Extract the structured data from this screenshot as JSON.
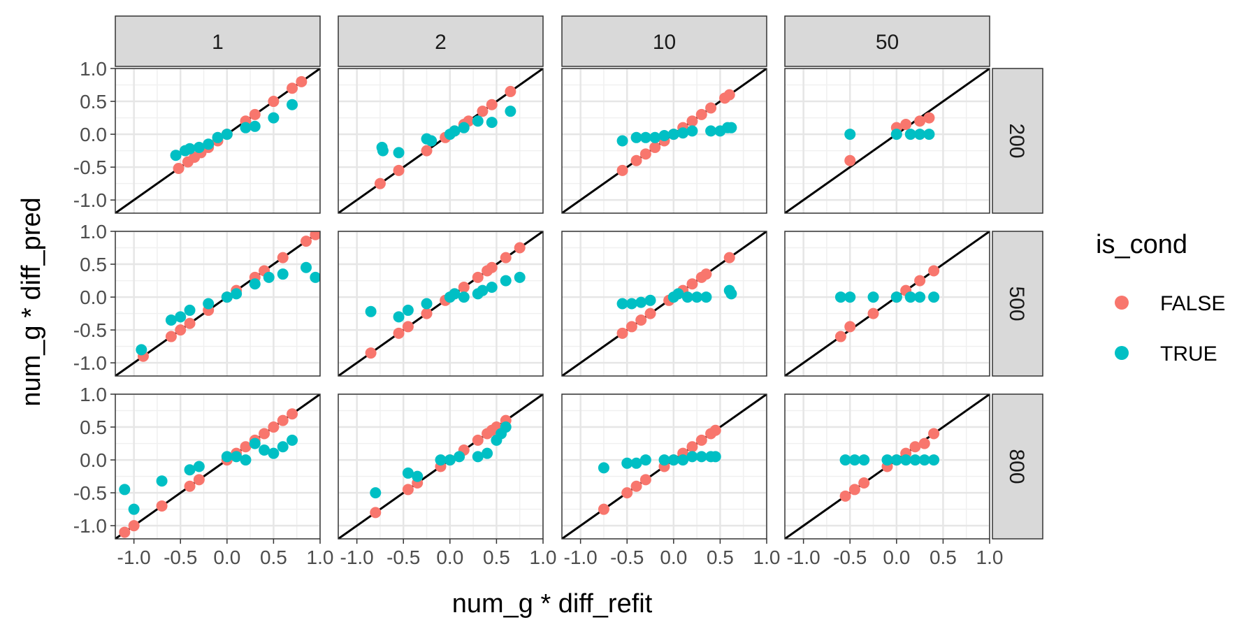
{
  "chart_data": {
    "type": "scatter",
    "title": "",
    "xlabel": "num_g * diff_refit",
    "ylabel": "num_g * diff_pred",
    "xlim": [
      -1.2,
      1.0
    ],
    "ylim": [
      -1.2,
      1.0
    ],
    "ticks": [
      -1.0,
      -0.5,
      0.0,
      0.5,
      1.0
    ],
    "tick_labels": [
      "-1.0",
      "-0.5",
      "0.0",
      "0.5",
      "1.0"
    ],
    "grid": true,
    "reference_line": "y = x",
    "col_labels": [
      "1",
      "2",
      "10",
      "50"
    ],
    "row_labels": [
      "200",
      "500",
      "800"
    ],
    "legend": {
      "title": "is_cond",
      "position": "right",
      "entries": [
        {
          "label": "FALSE",
          "color": "#F8766D"
        },
        {
          "label": "TRUE",
          "color": "#00BFC4"
        }
      ]
    },
    "panels": [
      {
        "row": "200",
        "col": "1",
        "false": [
          [
            -0.52,
            -0.52
          ],
          [
            -0.42,
            -0.42
          ],
          [
            -0.35,
            -0.35
          ],
          [
            -0.28,
            -0.28
          ],
          [
            -0.2,
            -0.2
          ],
          [
            -0.1,
            -0.1
          ],
          [
            0.0,
            0.0
          ],
          [
            0.2,
            0.2
          ],
          [
            0.3,
            0.3
          ],
          [
            0.5,
            0.5
          ],
          [
            0.7,
            0.7
          ],
          [
            0.8,
            0.8
          ]
        ],
        "true": [
          [
            -0.55,
            -0.32
          ],
          [
            -0.45,
            -0.25
          ],
          [
            -0.4,
            -0.22
          ],
          [
            -0.3,
            -0.2
          ],
          [
            -0.2,
            -0.15
          ],
          [
            -0.1,
            -0.05
          ],
          [
            0.0,
            0.0
          ],
          [
            0.2,
            0.1
          ],
          [
            0.3,
            0.12
          ],
          [
            0.5,
            0.25
          ],
          [
            0.7,
            0.45
          ]
        ]
      },
      {
        "row": "200",
        "col": "2",
        "false": [
          [
            -0.75,
            -0.75
          ],
          [
            -0.55,
            -0.55
          ],
          [
            -0.25,
            -0.25
          ],
          [
            -0.05,
            -0.05
          ],
          [
            0.05,
            0.05
          ],
          [
            0.15,
            0.15
          ],
          [
            0.2,
            0.2
          ],
          [
            0.35,
            0.35
          ],
          [
            0.45,
            0.45
          ],
          [
            0.65,
            0.65
          ]
        ],
        "true": [
          [
            -0.73,
            -0.2
          ],
          [
            -0.72,
            -0.25
          ],
          [
            -0.55,
            -0.28
          ],
          [
            -0.25,
            -0.07
          ],
          [
            -0.2,
            -0.1
          ],
          [
            0.0,
            0.0
          ],
          [
            0.05,
            0.05
          ],
          [
            0.15,
            0.1
          ],
          [
            0.3,
            0.2
          ],
          [
            0.45,
            0.18
          ],
          [
            0.65,
            0.35
          ]
        ]
      },
      {
        "row": "200",
        "col": "10",
        "false": [
          [
            -0.55,
            -0.55
          ],
          [
            -0.4,
            -0.4
          ],
          [
            -0.3,
            -0.3
          ],
          [
            -0.2,
            -0.2
          ],
          [
            -0.1,
            -0.1
          ],
          [
            0.0,
            0.0
          ],
          [
            0.1,
            0.1
          ],
          [
            0.2,
            0.2
          ],
          [
            0.3,
            0.3
          ],
          [
            0.4,
            0.4
          ],
          [
            0.55,
            0.55
          ],
          [
            0.6,
            0.6
          ]
        ],
        "true": [
          [
            -0.55,
            -0.1
          ],
          [
            -0.4,
            -0.05
          ],
          [
            -0.3,
            -0.05
          ],
          [
            -0.2,
            -0.05
          ],
          [
            -0.1,
            -0.02
          ],
          [
            0.0,
            0.0
          ],
          [
            0.1,
            0.02
          ],
          [
            0.2,
            0.05
          ],
          [
            0.4,
            0.05
          ],
          [
            0.5,
            0.05
          ],
          [
            0.58,
            0.1
          ],
          [
            0.62,
            0.1
          ]
        ]
      },
      {
        "row": "200",
        "col": "50",
        "false": [
          [
            -0.5,
            -0.4
          ],
          [
            0.0,
            0.1
          ],
          [
            0.1,
            0.15
          ],
          [
            0.25,
            0.2
          ],
          [
            0.35,
            0.25
          ]
        ],
        "true": [
          [
            -0.5,
            0.0
          ],
          [
            0.0,
            0.0
          ],
          [
            0.15,
            0.0
          ],
          [
            0.25,
            0.0
          ],
          [
            0.35,
            0.0
          ]
        ]
      },
      {
        "row": "500",
        "col": "1",
        "false": [
          [
            -0.9,
            -0.9
          ],
          [
            -0.6,
            -0.6
          ],
          [
            -0.5,
            -0.5
          ],
          [
            -0.4,
            -0.4
          ],
          [
            -0.2,
            -0.2
          ],
          [
            0.0,
            0.0
          ],
          [
            0.1,
            0.1
          ],
          [
            0.3,
            0.3
          ],
          [
            0.4,
            0.4
          ],
          [
            0.6,
            0.6
          ],
          [
            0.85,
            0.85
          ],
          [
            0.95,
            0.95
          ]
        ],
        "true": [
          [
            -0.92,
            -0.8
          ],
          [
            -0.6,
            -0.35
          ],
          [
            -0.5,
            -0.3
          ],
          [
            -0.4,
            -0.2
          ],
          [
            -0.2,
            -0.1
          ],
          [
            0.0,
            0.0
          ],
          [
            0.1,
            0.05
          ],
          [
            0.3,
            0.2
          ],
          [
            0.45,
            0.3
          ],
          [
            0.6,
            0.35
          ],
          [
            0.85,
            0.45
          ],
          [
            0.95,
            0.3
          ]
        ]
      },
      {
        "row": "500",
        "col": "2",
        "false": [
          [
            -0.85,
            -0.85
          ],
          [
            -0.55,
            -0.55
          ],
          [
            -0.45,
            -0.45
          ],
          [
            -0.25,
            -0.25
          ],
          [
            -0.05,
            -0.05
          ],
          [
            0.05,
            0.05
          ],
          [
            0.15,
            0.15
          ],
          [
            0.3,
            0.3
          ],
          [
            0.4,
            0.4
          ],
          [
            0.45,
            0.45
          ],
          [
            0.6,
            0.6
          ],
          [
            0.75,
            0.75
          ]
        ],
        "true": [
          [
            -0.85,
            -0.22
          ],
          [
            -0.55,
            -0.3
          ],
          [
            -0.45,
            -0.2
          ],
          [
            -0.25,
            -0.1
          ],
          [
            0.0,
            0.0
          ],
          [
            0.05,
            0.05
          ],
          [
            0.15,
            0.0
          ],
          [
            0.3,
            0.05
          ],
          [
            0.35,
            0.1
          ],
          [
            0.45,
            0.15
          ],
          [
            0.6,
            0.25
          ],
          [
            0.75,
            0.3
          ]
        ]
      },
      {
        "row": "500",
        "col": "10",
        "false": [
          [
            -0.55,
            -0.55
          ],
          [
            -0.45,
            -0.45
          ],
          [
            -0.35,
            -0.35
          ],
          [
            -0.25,
            -0.25
          ],
          [
            -0.05,
            -0.05
          ],
          [
            0.1,
            0.1
          ],
          [
            0.2,
            0.2
          ],
          [
            0.3,
            0.3
          ],
          [
            0.35,
            0.35
          ],
          [
            0.6,
            0.6
          ]
        ],
        "true": [
          [
            -0.55,
            -0.1
          ],
          [
            -0.45,
            -0.1
          ],
          [
            -0.35,
            -0.08
          ],
          [
            -0.25,
            -0.05
          ],
          [
            0.0,
            0.0
          ],
          [
            0.05,
            0.05
          ],
          [
            0.15,
            0.0
          ],
          [
            0.25,
            0.0
          ],
          [
            0.35,
            0.0
          ],
          [
            0.6,
            0.1
          ],
          [
            0.62,
            0.05
          ]
        ]
      },
      {
        "row": "500",
        "col": "50",
        "false": [
          [
            -0.6,
            -0.6
          ],
          [
            -0.5,
            -0.45
          ],
          [
            -0.25,
            -0.25
          ],
          [
            0.0,
            0.0
          ],
          [
            0.1,
            0.1
          ],
          [
            0.25,
            0.25
          ],
          [
            0.4,
            0.4
          ]
        ],
        "true": [
          [
            -0.6,
            0.0
          ],
          [
            -0.5,
            0.0
          ],
          [
            -0.25,
            0.0
          ],
          [
            0.0,
            0.0
          ],
          [
            0.15,
            0.0
          ],
          [
            0.25,
            0.0
          ],
          [
            0.4,
            0.0
          ]
        ]
      },
      {
        "row": "800",
        "col": "1",
        "false": [
          [
            -1.1,
            -1.1
          ],
          [
            -1.0,
            -1.0
          ],
          [
            -0.7,
            -0.7
          ],
          [
            -0.4,
            -0.4
          ],
          [
            -0.3,
            -0.3
          ],
          [
            0.0,
            0.0
          ],
          [
            0.1,
            0.1
          ],
          [
            0.2,
            0.2
          ],
          [
            0.3,
            0.3
          ],
          [
            0.4,
            0.4
          ],
          [
            0.5,
            0.5
          ],
          [
            0.6,
            0.6
          ],
          [
            0.7,
            0.7
          ]
        ],
        "true": [
          [
            -1.1,
            -0.45
          ],
          [
            -1.0,
            -0.75
          ],
          [
            -0.7,
            -0.32
          ],
          [
            -0.4,
            -0.15
          ],
          [
            -0.3,
            -0.1
          ],
          [
            0.0,
            0.05
          ],
          [
            0.1,
            0.05
          ],
          [
            0.2,
            0.0
          ],
          [
            0.3,
            0.25
          ],
          [
            0.4,
            0.15
          ],
          [
            0.5,
            0.1
          ],
          [
            0.6,
            0.2
          ],
          [
            0.7,
            0.3
          ]
        ]
      },
      {
        "row": "800",
        "col": "2",
        "false": [
          [
            -0.8,
            -0.8
          ],
          [
            -0.45,
            -0.45
          ],
          [
            -0.35,
            -0.35
          ],
          [
            -0.1,
            -0.1
          ],
          [
            0.0,
            0.0
          ],
          [
            0.15,
            0.15
          ],
          [
            0.3,
            0.3
          ],
          [
            0.4,
            0.4
          ],
          [
            0.45,
            0.45
          ],
          [
            0.5,
            0.5
          ],
          [
            0.6,
            0.6
          ]
        ],
        "true": [
          [
            -0.8,
            -0.5
          ],
          [
            -0.45,
            -0.2
          ],
          [
            -0.35,
            -0.25
          ],
          [
            -0.1,
            0.0
          ],
          [
            0.0,
            0.0
          ],
          [
            0.1,
            0.05
          ],
          [
            0.3,
            0.05
          ],
          [
            0.4,
            0.1
          ],
          [
            0.5,
            0.3
          ],
          [
            0.55,
            0.4
          ],
          [
            0.6,
            0.5
          ]
        ]
      },
      {
        "row": "800",
        "col": "10",
        "false": [
          [
            -0.75,
            -0.75
          ],
          [
            -0.5,
            -0.5
          ],
          [
            -0.4,
            -0.4
          ],
          [
            -0.3,
            -0.3
          ],
          [
            -0.1,
            -0.1
          ],
          [
            0.0,
            0.0
          ],
          [
            0.1,
            0.1
          ],
          [
            0.2,
            0.2
          ],
          [
            0.3,
            0.3
          ],
          [
            0.4,
            0.4
          ],
          [
            0.45,
            0.45
          ]
        ],
        "true": [
          [
            -0.75,
            -0.12
          ],
          [
            -0.5,
            -0.05
          ],
          [
            -0.4,
            -0.05
          ],
          [
            -0.3,
            0.0
          ],
          [
            -0.1,
            0.0
          ],
          [
            0.0,
            0.0
          ],
          [
            0.1,
            0.0
          ],
          [
            0.2,
            0.05
          ],
          [
            0.3,
            0.05
          ],
          [
            0.4,
            0.05
          ],
          [
            0.45,
            0.05
          ]
        ]
      },
      {
        "row": "800",
        "col": "50",
        "false": [
          [
            -0.55,
            -0.55
          ],
          [
            -0.45,
            -0.45
          ],
          [
            -0.35,
            -0.35
          ],
          [
            -0.1,
            -0.1
          ],
          [
            0.0,
            0.0
          ],
          [
            0.1,
            0.1
          ],
          [
            0.2,
            0.2
          ],
          [
            0.3,
            0.25
          ],
          [
            0.4,
            0.4
          ]
        ],
        "true": [
          [
            -0.55,
            0.0
          ],
          [
            -0.45,
            0.0
          ],
          [
            -0.35,
            0.0
          ],
          [
            -0.1,
            0.0
          ],
          [
            0.0,
            0.0
          ],
          [
            0.1,
            0.0
          ],
          [
            0.2,
            0.0
          ],
          [
            0.3,
            0.0
          ],
          [
            0.4,
            0.0
          ]
        ]
      }
    ]
  }
}
